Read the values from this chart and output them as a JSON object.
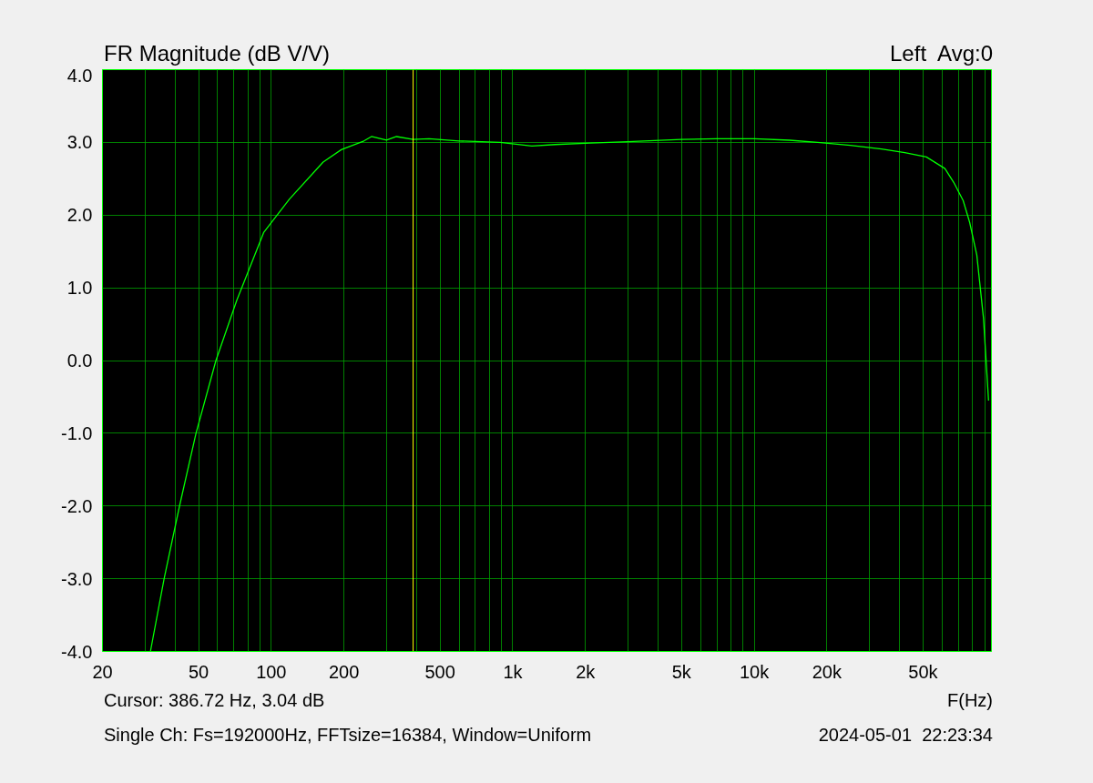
{
  "chart_data": {
    "type": "line",
    "title": "FR Magnitude (dB V/V)",
    "subtitle": "Left  Avg:0",
    "xlabel": "F(Hz)",
    "log": "x",
    "grid": true,
    "marker": "none",
    "line_style": "solid",
    "xlim": [
      20,
      96000
    ],
    "ylim": [
      -4,
      4
    ],
    "xticks": [
      20,
      {
        "value": 30,
        "label": null
      },
      {
        "value": 40,
        "label": null
      },
      50,
      {
        "value": 60,
        "label": null
      },
      {
        "value": 70,
        "label": null
      },
      {
        "value": 80,
        "label": null
      },
      {
        "value": 90,
        "label": null
      },
      100,
      200,
      {
        "value": 300,
        "label": null
      },
      {
        "value": 400,
        "label": null
      },
      500,
      {
        "value": 600,
        "label": null
      },
      {
        "value": 700,
        "label": null
      },
      {
        "value": 800,
        "label": null
      },
      {
        "value": 900,
        "label": null
      },
      {
        "value": 1000,
        "label": "1k"
      },
      {
        "value": 2000,
        "label": "2k"
      },
      {
        "value": 3000,
        "label": null
      },
      {
        "value": 4000,
        "label": null
      },
      {
        "value": 5000,
        "label": "5k"
      },
      {
        "value": 6000,
        "label": null
      },
      {
        "value": 7000,
        "label": null
      },
      {
        "value": 8000,
        "label": null
      },
      {
        "value": 9000,
        "label": null
      },
      {
        "value": 10000,
        "label": "10k"
      },
      {
        "value": 20000,
        "label": "20k"
      },
      {
        "value": 30000,
        "label": null
      },
      {
        "value": 40000,
        "label": null
      },
      {
        "value": 50000,
        "label": "50k"
      },
      {
        "value": 60000,
        "label": null
      },
      {
        "value": 70000,
        "label": null
      },
      {
        "value": 80000,
        "label": null
      },
      {
        "value": 90000,
        "label": null
      }
    ],
    "yticks": [
      {
        "value": -4,
        "label": "-4.0"
      },
      {
        "value": -3,
        "label": "-3.0"
      },
      {
        "value": -2,
        "label": "-2.0"
      },
      {
        "value": -1,
        "label": "-1.0"
      },
      {
        "value": 0,
        "label": "0.0"
      },
      {
        "value": 1,
        "label": "1.0"
      },
      {
        "value": 2,
        "label": "2.0"
      },
      {
        "value": 3,
        "label": "3.0"
      },
      {
        "value": 4,
        "label": "4.0"
      }
    ],
    "series": [
      {
        "color": "#00ff00",
        "x": [
          31.6,
          36,
          41.7,
          48.8,
          59,
          72,
          93,
          119,
          164,
          195,
          242,
          260,
          300,
          330,
          386.72,
          450,
          600,
          887,
          1200,
          1500,
          2100,
          3000,
          5000,
          7000,
          10000,
          14000,
          18300,
          25000,
          33600,
          42000,
          51600,
          61600,
          67000,
          73300,
          78000,
          83500,
          89000,
          93400
        ],
        "values": [
          -4.0,
          -3.0,
          -2.0,
          -1.0,
          0.0,
          0.83,
          1.76,
          2.22,
          2.73,
          2.9,
          3.02,
          3.08,
          3.03,
          3.08,
          3.04,
          3.05,
          3.02,
          3.0,
          2.95,
          2.97,
          2.99,
          3.01,
          3.04,
          3.05,
          3.05,
          3.03,
          3.0,
          2.96,
          2.91,
          2.86,
          2.8,
          2.64,
          2.45,
          2.2,
          1.9,
          1.45,
          0.58,
          -0.55
        ]
      }
    ],
    "ref_lines": [
      {
        "axis": "x",
        "value": 386.72,
        "color": "#ffff00"
      }
    ],
    "annotations": [
      "Cursor: 386.72 Hz, 3.04 dB",
      "Single Ch: Fs=192000Hz, FFTsize=16384, Window=Uniform",
      "2024-05-01  22:23:34"
    ]
  }
}
